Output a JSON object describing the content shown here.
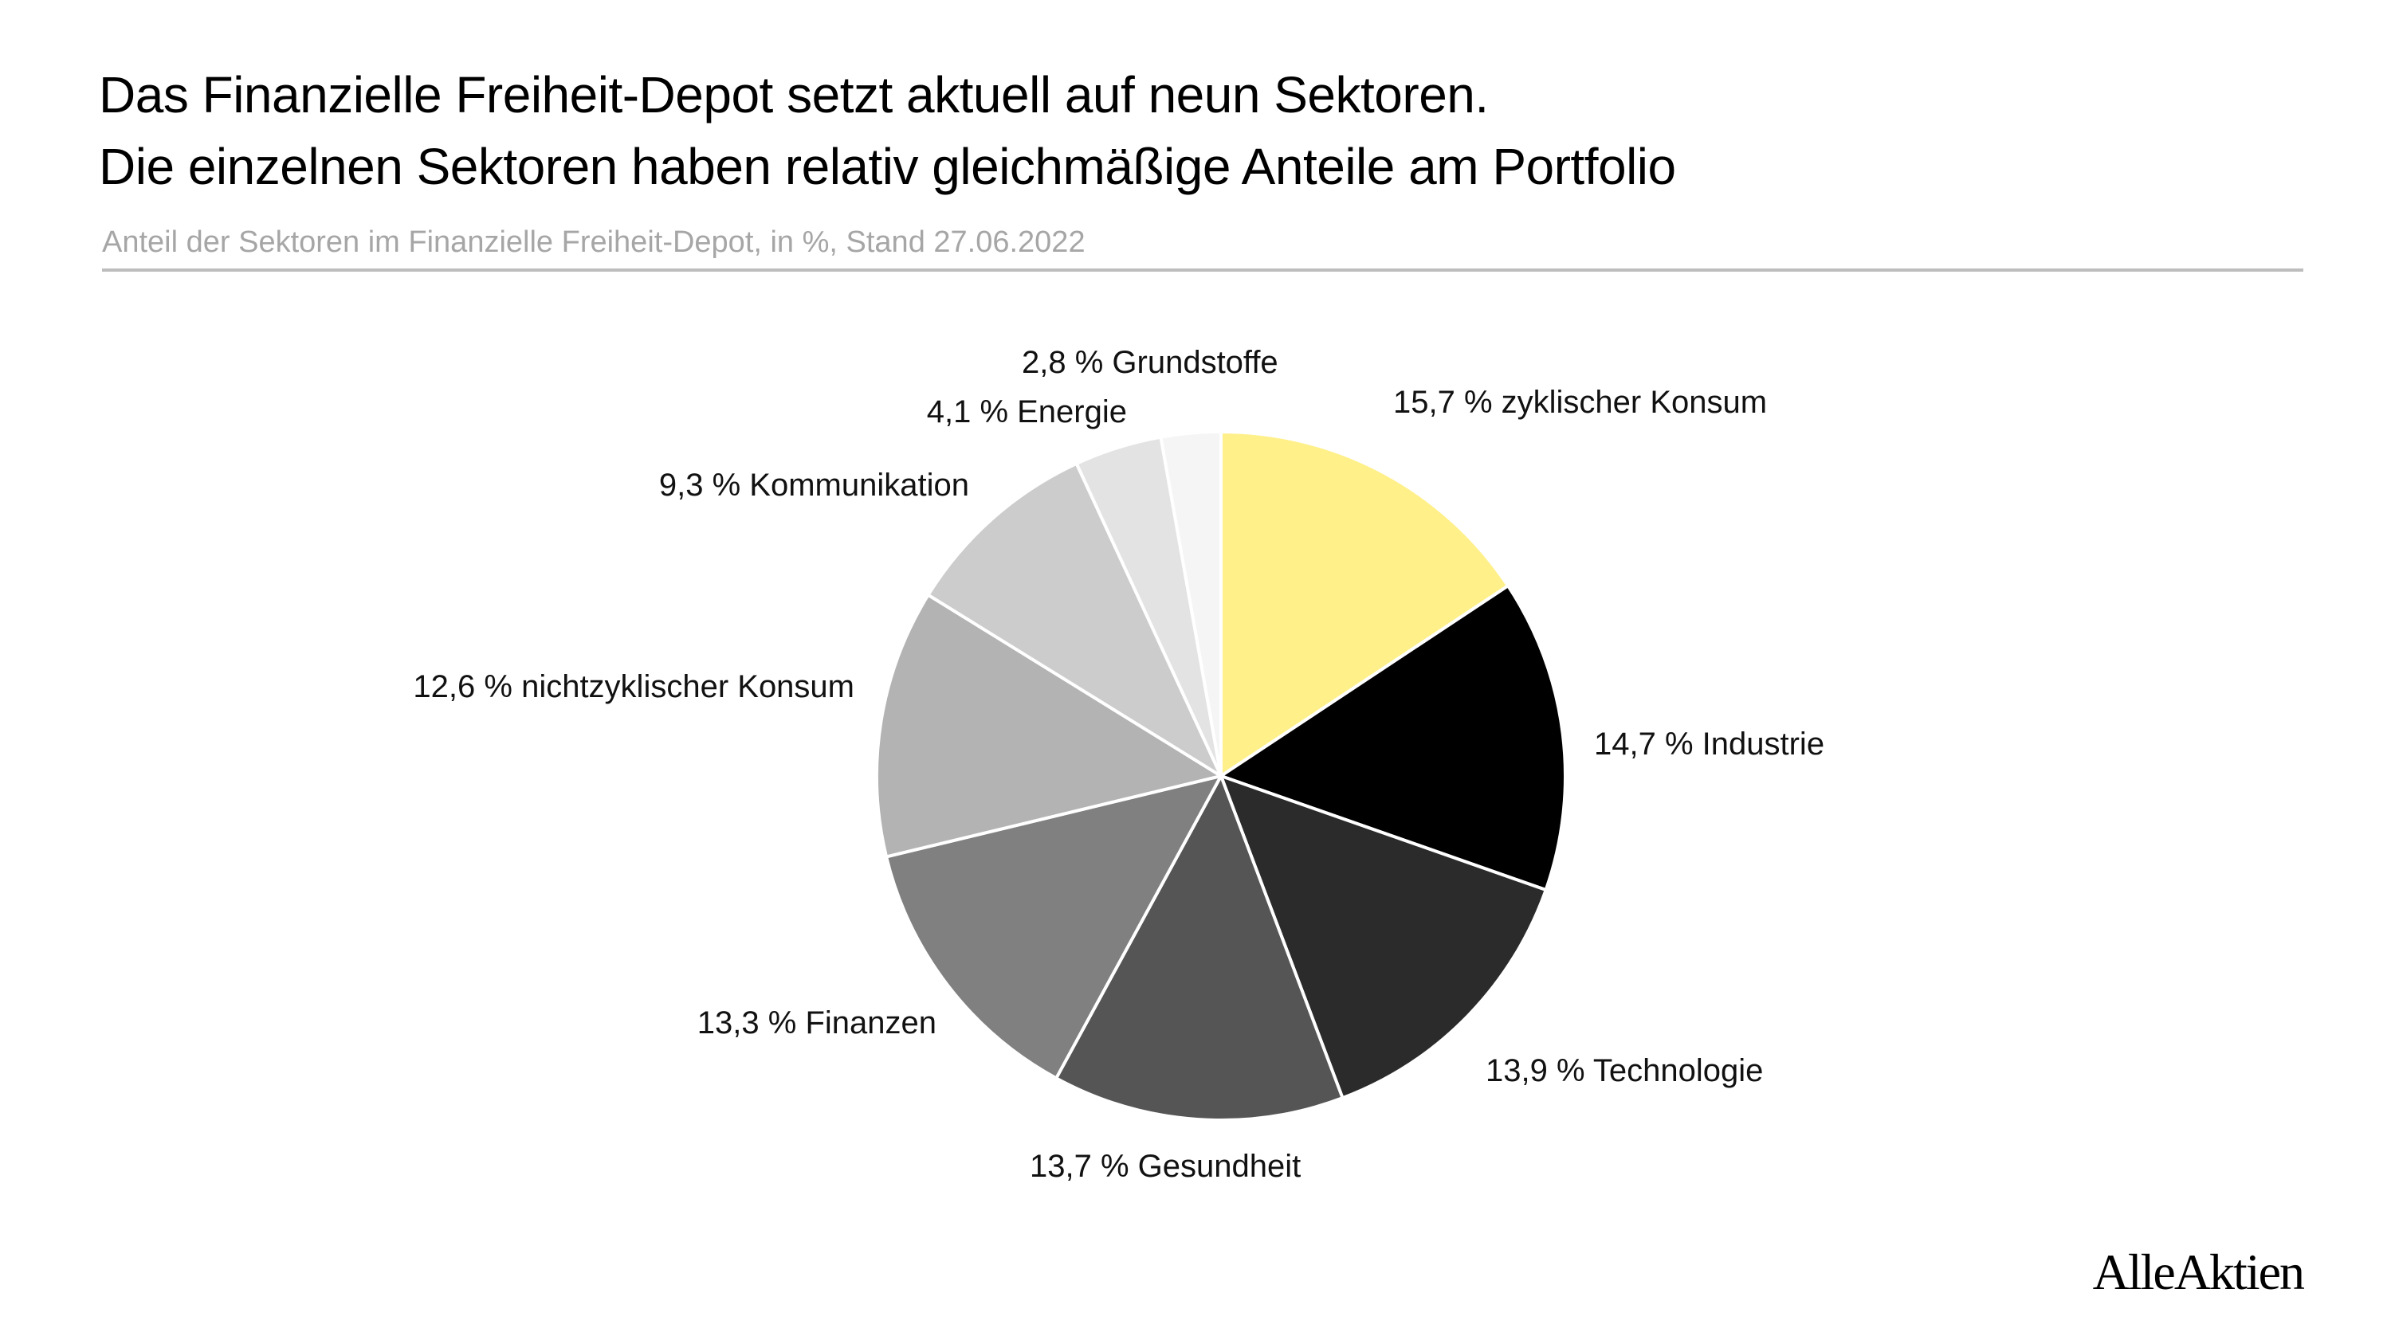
{
  "header": {
    "title_line1": "Das Finanzielle Freiheit-Depot setzt aktuell auf neun Sektoren.",
    "title_line2": "Die einzelnen Sektoren haben relativ gleichmäßige Anteile am Portfolio",
    "subtitle": "Anteil der Sektoren im Finanzielle Freiheit-Depot, in %, Stand 27.06.2022"
  },
  "brand": "AlleAktien",
  "chart_data": {
    "type": "pie",
    "title": "Das Finanzielle Freiheit-Depot setzt aktuell auf neun Sektoren. Die einzelnen Sektoren haben relativ gleichmäßige Anteile am Portfolio",
    "subtitle": "Anteil der Sektoren im Finanzielle Freiheit-Depot, in %, Stand 27.06.2022",
    "unit": "%",
    "start": "12 o'clock, clockwise",
    "slices": [
      {
        "label": "zyklischer Konsum",
        "value": 15.7,
        "text": "15,7 % zyklischer Konsum",
        "color": "#fff08a"
      },
      {
        "label": "Industrie",
        "value": 14.7,
        "text": "14,7 % Industrie",
        "color": "#000000"
      },
      {
        "label": "Technologie",
        "value": 13.9,
        "text": "13,9 % Technologie",
        "color": "#2b2b2b"
      },
      {
        "label": "Gesundheit",
        "value": 13.7,
        "text": "13,7 % Gesundheit",
        "color": "#555555"
      },
      {
        "label": "Finanzen",
        "value": 13.3,
        "text": "13,3 % Finanzen",
        "color": "#808080"
      },
      {
        "label": "nichtzyklischer Konsum",
        "value": 12.6,
        "text": "12,6 % nichtzyklischer Konsum",
        "color": "#b3b3b3"
      },
      {
        "label": "Kommunikation",
        "value": 9.3,
        "text": "9,3 % Kommunikation",
        "color": "#cccccc"
      },
      {
        "label": "Energie",
        "value": 4.1,
        "text": "4,1 % Energie",
        "color": "#e3e3e3"
      },
      {
        "label": "Grundstoffe",
        "value": 2.8,
        "text": "2,8 % Grundstoffe",
        "color": "#f5f5f5"
      }
    ]
  }
}
